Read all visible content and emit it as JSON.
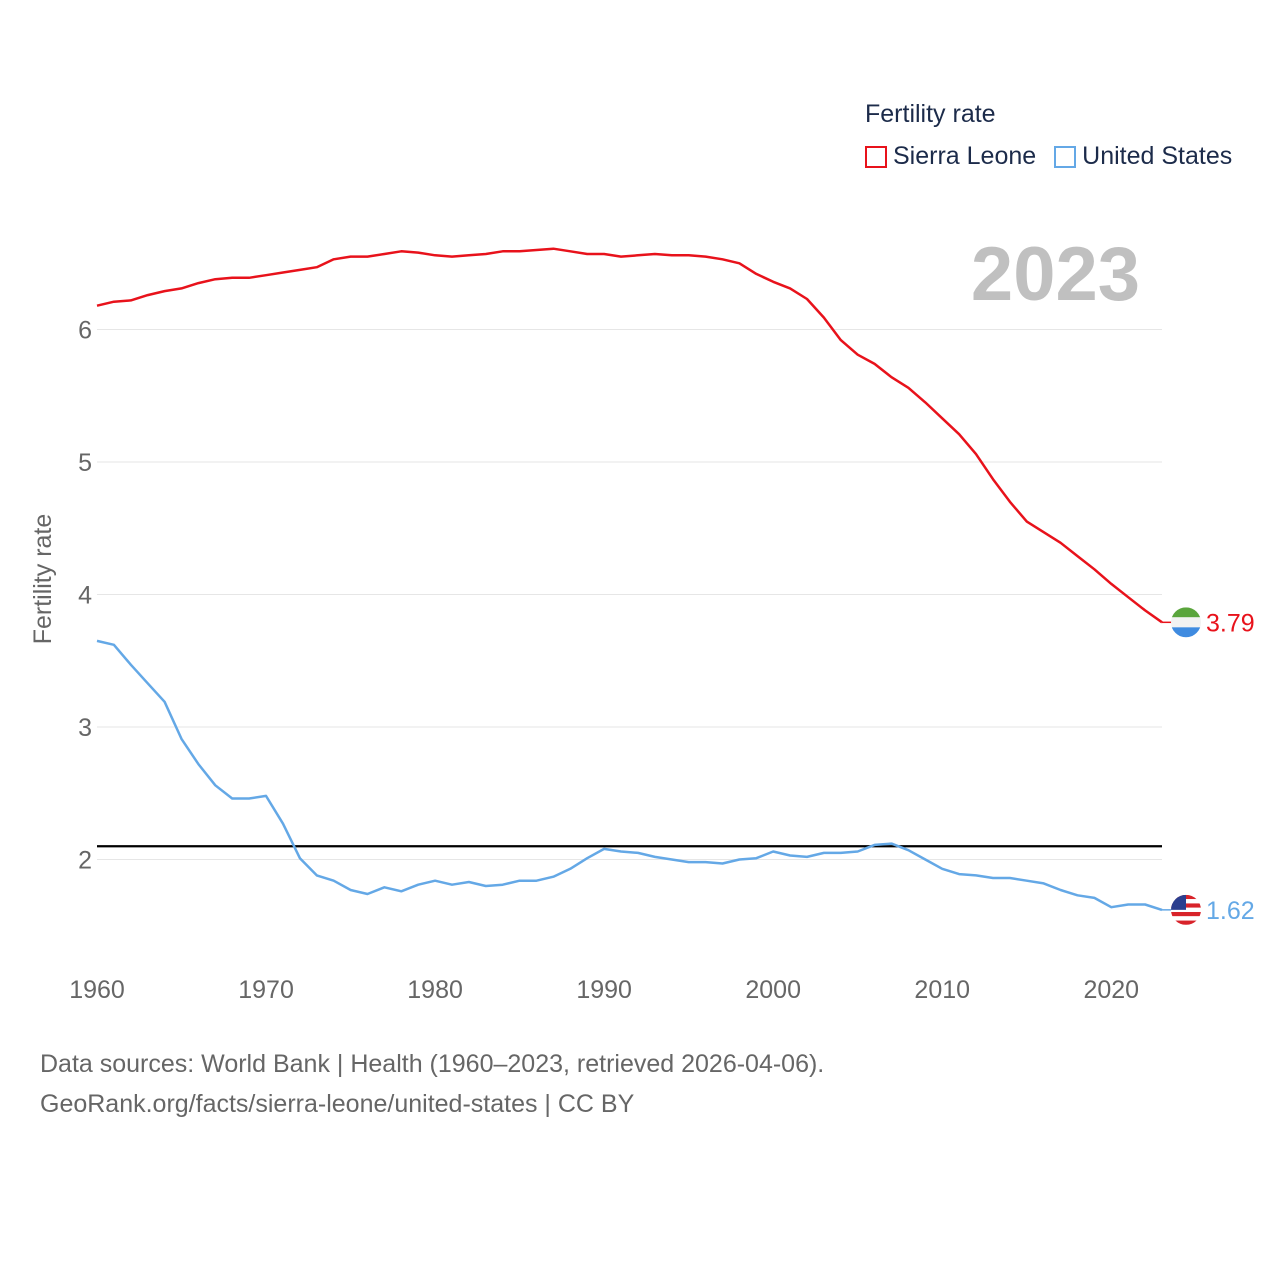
{
  "legend": {
    "title": "Fertility rate",
    "items": [
      {
        "label": "Sierra Leone",
        "color": "#e8121b"
      },
      {
        "label": "United States",
        "color": "#64a8e6"
      }
    ]
  },
  "source": {
    "line1": "Data sources: World Bank | Health (1960–2023, retrieved 2026-04-06).",
    "line2": "GeoRank.org/facts/sierra-leone/united-states | CC BY"
  },
  "chart_data": {
    "type": "line",
    "title": "Fertility rate",
    "ylabel": "Fertility rate",
    "xlabel": "",
    "year_label": "2023",
    "xlim": [
      1960,
      2023
    ],
    "ylim": [
      1.0,
      7.0
    ],
    "xticks": [
      1960,
      1970,
      1980,
      1990,
      2000,
      2010,
      2020
    ],
    "yticks": [
      2,
      3,
      4,
      5,
      6
    ],
    "reference_line": {
      "y": 2.1,
      "color": "#000000"
    },
    "x": [
      1960,
      1961,
      1962,
      1963,
      1964,
      1965,
      1966,
      1967,
      1968,
      1969,
      1970,
      1971,
      1972,
      1973,
      1974,
      1975,
      1976,
      1977,
      1978,
      1979,
      1980,
      1981,
      1982,
      1983,
      1984,
      1985,
      1986,
      1987,
      1988,
      1989,
      1990,
      1991,
      1992,
      1993,
      1994,
      1995,
      1996,
      1997,
      1998,
      1999,
      2000,
      2001,
      2002,
      2003,
      2004,
      2005,
      2006,
      2007,
      2008,
      2009,
      2010,
      2011,
      2012,
      2013,
      2014,
      2015,
      2016,
      2017,
      2018,
      2019,
      2020,
      2021,
      2022,
      2023
    ],
    "series": [
      {
        "name": "Sierra Leone",
        "color": "#e8121b",
        "end_label": "3.79",
        "values": [
          6.18,
          6.21,
          6.22,
          6.26,
          6.29,
          6.31,
          6.35,
          6.38,
          6.39,
          6.39,
          6.41,
          6.43,
          6.45,
          6.47,
          6.53,
          6.55,
          6.55,
          6.57,
          6.59,
          6.58,
          6.56,
          6.55,
          6.56,
          6.57,
          6.59,
          6.59,
          6.6,
          6.61,
          6.59,
          6.57,
          6.57,
          6.55,
          6.56,
          6.57,
          6.56,
          6.56,
          6.55,
          6.53,
          6.5,
          6.42,
          6.36,
          6.31,
          6.23,
          6.09,
          5.92,
          5.81,
          5.74,
          5.64,
          5.56,
          5.45,
          5.33,
          5.21,
          5.06,
          4.87,
          4.7,
          4.55,
          4.47,
          4.39,
          4.29,
          4.19,
          4.08,
          3.98,
          3.88,
          3.79
        ]
      },
      {
        "name": "United States",
        "color": "#64a8e6",
        "end_label": "1.62",
        "values": [
          3.65,
          3.62,
          3.47,
          3.33,
          3.19,
          2.91,
          2.72,
          2.56,
          2.46,
          2.46,
          2.48,
          2.27,
          2.01,
          1.88,
          1.84,
          1.77,
          1.74,
          1.79,
          1.76,
          1.81,
          1.84,
          1.81,
          1.83,
          1.8,
          1.81,
          1.84,
          1.84,
          1.87,
          1.93,
          2.01,
          2.08,
          2.06,
          2.05,
          2.02,
          2.0,
          1.98,
          1.98,
          1.97,
          2.0,
          2.01,
          2.06,
          2.03,
          2.02,
          2.05,
          2.05,
          2.06,
          2.11,
          2.12,
          2.07,
          2.0,
          1.93,
          1.89,
          1.88,
          1.86,
          1.86,
          1.84,
          1.82,
          1.77,
          1.73,
          1.71,
          1.64,
          1.66,
          1.66,
          1.62
        ]
      }
    ]
  }
}
